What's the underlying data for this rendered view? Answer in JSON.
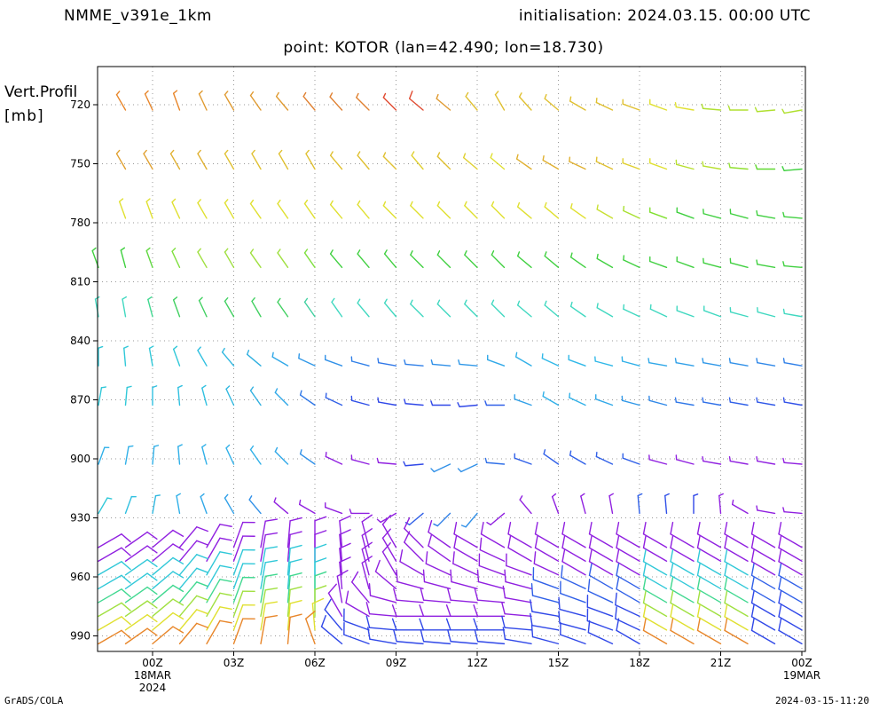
{
  "header": {
    "model": "NMME_v391e_1km",
    "initialisation": "initialisation: 2024.03.15. 00:00 UTC",
    "point": "point: KOTOR (lan=42.490; lon=18.730)"
  },
  "footer": {
    "left": "GrADS/COLA",
    "right": "2024-03-15-11:20"
  },
  "chart_data": {
    "type": "wind-barb-profile",
    "ylabel": [
      "Vert.Profil",
      "[mb]"
    ],
    "ylim": [
      1000,
      700
    ],
    "y_ticks": [
      720,
      750,
      780,
      810,
      840,
      870,
      900,
      930,
      960,
      990
    ],
    "x_range_hours": [
      -2,
      24
    ],
    "x_ticks": [
      {
        "h": 0,
        "lines": [
          "00Z",
          "18MAR",
          "2024"
        ]
      },
      {
        "h": 3,
        "lines": [
          "03Z"
        ]
      },
      {
        "h": 6,
        "lines": [
          "06Z"
        ]
      },
      {
        "h": 9,
        "lines": [
          "09Z"
        ]
      },
      {
        "h": 12,
        "lines": [
          "12Z"
        ]
      },
      {
        "h": 15,
        "lines": [
          "15Z"
        ]
      },
      {
        "h": 18,
        "lines": [
          "18Z"
        ]
      },
      {
        "h": 21,
        "lines": [
          "21Z"
        ]
      },
      {
        "h": 24,
        "lines": [
          "00Z",
          "19MAR"
        ]
      }
    ],
    "grid": true,
    "barb_times_hours": [
      -2,
      -1,
      0,
      1,
      2,
      3,
      4,
      5,
      6,
      7,
      8,
      9,
      10,
      11,
      12,
      13,
      14,
      15,
      16,
      17,
      18,
      19,
      20,
      21,
      22,
      23,
      24
    ],
    "upper_levels": [
      {
        "p": 720,
        "dir": [
          null,
          330,
          335,
          340,
          335,
          330,
          325,
          320,
          320,
          318,
          315,
          315,
          310,
          310,
          320,
          330,
          318,
          310,
          300,
          295,
          290,
          290,
          280,
          275,
          270,
          265,
          260
        ],
        "speed": [
          null,
          8,
          8,
          8,
          8,
          8,
          8,
          8,
          8,
          8,
          8,
          9,
          10,
          9,
          8,
          8,
          8,
          8,
          8,
          8,
          8,
          8,
          8,
          8,
          8,
          8,
          8
        ],
        "color": [
          "#e8862a",
          "#e8862a",
          "#e8862a",
          "#e8862a",
          "#e09a30",
          "#e09a30",
          "#e09a30",
          "#e09a30",
          "#e08030",
          "#e08030",
          "#e08030",
          "#e04a30",
          "#e04a30",
          "#e09a30",
          "#e0c030",
          "#e0c030",
          "#e0c030",
          "#e0c030",
          "#e0c030",
          "#e0c030",
          "#e0c030",
          "#e0e030",
          "#e0e030",
          "#b0e030",
          "#b0e030",
          "#b0e030",
          "#b0e030"
        ]
      },
      {
        "p": 750,
        "dir": [
          null,
          330,
          330,
          330,
          330,
          330,
          330,
          330,
          330,
          320,
          320,
          315,
          320,
          315,
          310,
          310,
          305,
          300,
          295,
          295,
          290,
          290,
          285,
          280,
          275,
          270,
          265
        ],
        "speed": [
          null,
          8,
          8,
          8,
          8,
          8,
          8,
          8,
          8,
          8,
          8,
          8,
          8,
          8,
          8,
          8,
          8,
          8,
          8,
          8,
          8,
          8,
          8,
          8,
          8,
          8,
          8
        ],
        "color": [
          "#e0a030",
          "#e0a030",
          "#e0a030",
          "#e0b030",
          "#e0b030",
          "#e0c030",
          "#e0c030",
          "#e0c030",
          "#e0c030",
          "#e0c030",
          "#e0c030",
          "#e0c030",
          "#e0d030",
          "#e0c030",
          "#e0d030",
          "#e0e030",
          "#e0b030",
          "#e0b030",
          "#e0b030",
          "#e0c030",
          "#e0d030",
          "#e0e030",
          "#b8e030",
          "#b8e030",
          "#90e030",
          "#60d830",
          "#40d040"
        ]
      },
      {
        "p": 775,
        "dir": [
          null,
          340,
          340,
          335,
          330,
          330,
          325,
          325,
          325,
          320,
          320,
          315,
          315,
          315,
          315,
          315,
          310,
          310,
          305,
          300,
          295,
          290,
          290,
          285,
          285,
          280,
          275
        ],
        "speed": [
          null,
          8,
          8,
          8,
          8,
          8,
          8,
          8,
          8,
          8,
          8,
          8,
          8,
          8,
          8,
          8,
          8,
          8,
          8,
          8,
          8,
          8,
          8,
          8,
          8,
          8,
          8
        ],
        "color": [
          "#e0e030",
          "#e0e030",
          "#e0e030",
          "#e0e030",
          "#e0e030",
          "#e0e030",
          "#e0e030",
          "#e0e030",
          "#e0e030",
          "#e0e030",
          "#e0e030",
          "#e0e030",
          "#e0e030",
          "#e0e030",
          "#e0e030",
          "#e0e030",
          "#e0e030",
          "#e0e030",
          "#e0e030",
          "#c8e030",
          "#a8e030",
          "#80e030",
          "#40d040",
          "#40d040",
          "#40d040",
          "#40d040",
          "#40d040"
        ]
      },
      {
        "p": 800,
        "dir": [
          340,
          345,
          340,
          335,
          330,
          330,
          325,
          325,
          325,
          320,
          320,
          320,
          315,
          315,
          315,
          315,
          310,
          310,
          305,
          300,
          295,
          290,
          290,
          285,
          285,
          280,
          275
        ],
        "speed": [
          8,
          8,
          8,
          8,
          8,
          8,
          8,
          8,
          8,
          8,
          8,
          8,
          8,
          8,
          8,
          8,
          8,
          8,
          8,
          8,
          8,
          8,
          8,
          8,
          8,
          8,
          8
        ],
        "color": [
          "#40d040",
          "#40d040",
          "#60d840",
          "#80e040",
          "#a0e040",
          "#a0e040",
          "#a0e040",
          "#a0e040",
          "#80e040",
          "#40d040",
          "#40d040",
          "#40d040",
          "#40d040",
          "#40d040",
          "#40d040",
          "#40d040",
          "#40d040",
          "#40d040",
          "#40d040",
          "#40d040",
          "#40d040",
          "#40d040",
          "#40d040",
          "#40d040",
          "#40d040",
          "#40d040",
          "#40d040"
        ]
      },
      {
        "p": 825,
        "dir": [
          350,
          350,
          345,
          340,
          335,
          330,
          330,
          325,
          325,
          325,
          320,
          320,
          315,
          315,
          315,
          315,
          310,
          310,
          305,
          300,
          295,
          295,
          290,
          290,
          285,
          285,
          280
        ],
        "speed": [
          8,
          8,
          8,
          8,
          8,
          8,
          8,
          8,
          8,
          8,
          8,
          8,
          8,
          8,
          8,
          8,
          8,
          8,
          8,
          8,
          8,
          8,
          8,
          8,
          8,
          8,
          8
        ],
        "color": [
          "#40d8c0",
          "#40d8c0",
          "#40d890",
          "#40d060",
          "#40d060",
          "#40d060",
          "#40d060",
          "#40d060",
          "#40d0a0",
          "#40d8c0",
          "#40d8c0",
          "#40d8c0",
          "#40d8c0",
          "#40d8c0",
          "#40d8c0",
          "#40d8c0",
          "#40d8c0",
          "#40d8c0",
          "#40d8c0",
          "#40d8c0",
          "#40d8c0",
          "#40d8c0",
          "#40d8c0",
          "#40d8c0",
          "#40d8c0",
          "#40d8c0",
          "#40d8c0"
        ]
      },
      {
        "p": 850,
        "dir": [
          0,
          355,
          350,
          340,
          330,
          320,
          310,
          300,
          295,
          290,
          285,
          280,
          275,
          275,
          275,
          290,
          300,
          295,
          290,
          285,
          285,
          280,
          280,
          280,
          280,
          280,
          280
        ],
        "speed": [
          8,
          8,
          8,
          8,
          8,
          8,
          8,
          8,
          8,
          8,
          8,
          8,
          8,
          8,
          8,
          8,
          8,
          8,
          8,
          8,
          8,
          8,
          8,
          8,
          8,
          8,
          8
        ],
        "color": [
          "#30c8d8",
          "#30c8d8",
          "#30c8d8",
          "#30c8d8",
          "#30c0e0",
          "#30b8e0",
          "#30b0e0",
          "#30a8e8",
          "#3098e8",
          "#3090e8",
          "#3080e8",
          "#3078e8",
          "#3080e8",
          "#3090e8",
          "#3098e8",
          "#30a8e8",
          "#30b0e8",
          "#30b8e8",
          "#30b8e8",
          "#30b8e8",
          "#30b0e8",
          "#30a8e8",
          "#30a0e8",
          "#3098e8",
          "#3090e8",
          "#3088e8",
          "#3080e8"
        ]
      },
      {
        "p": 870,
        "dir": [
          10,
          5,
          0,
          355,
          345,
          335,
          325,
          315,
          305,
          295,
          285,
          280,
          275,
          270,
          265,
          270,
          290,
          300,
          295,
          290,
          285,
          285,
          280,
          280,
          280,
          280,
          280
        ],
        "speed": [
          8,
          8,
          8,
          8,
          8,
          8,
          8,
          8,
          8,
          8,
          8,
          8,
          8,
          8,
          8,
          8,
          8,
          8,
          8,
          8,
          8,
          8,
          8,
          8,
          8,
          8,
          8
        ],
        "color": [
          "#30c8d8",
          "#30c8d8",
          "#30c0e0",
          "#30c0e0",
          "#30c0e0",
          "#30b8e0",
          "#30b0e0",
          "#30a8e8",
          "#3078e8",
          "#3060e8",
          "#3050e8",
          "#3048e8",
          "#3048e8",
          "#3048e8",
          "#3048e8",
          "#3060e8",
          "#30a0e8",
          "#30b0e8",
          "#30b0e8",
          "#30a8e8",
          "#3098e8",
          "#3088e8",
          "#3078e8",
          "#3070e8",
          "#3060e8",
          "#3058e8",
          "#3050e8"
        ]
      },
      {
        "p": 900,
        "dir": [
          20,
          10,
          5,
          355,
          345,
          335,
          325,
          315,
          305,
          295,
          285,
          275,
          265,
          245,
          245,
          275,
          290,
          305,
          300,
          295,
          290,
          285,
          285,
          280,
          280,
          280,
          275
        ],
        "speed": [
          8,
          8,
          8,
          8,
          8,
          8,
          8,
          8,
          8,
          8,
          8,
          8,
          8,
          8,
          8,
          8,
          8,
          8,
          8,
          8,
          8,
          8,
          8,
          8,
          8,
          8,
          8
        ],
        "color": [
          "#30b0e8",
          "#30b0e8",
          "#30b0e8",
          "#30b0e8",
          "#30b0e8",
          "#30b0e8",
          "#30b0e8",
          "#30a8e8",
          "#3090e8",
          "#9020e0",
          "#9020e0",
          "#9020e0",
          "#3048e8",
          "#3090e8",
          "#3090e8",
          "#3070e8",
          "#3060e8",
          "#3060e8",
          "#3060e8",
          "#3060e8",
          "#3060e8",
          "#9020e0",
          "#9020e0",
          "#9020e0",
          "#9020e0",
          "#9020e0",
          "#9020e0"
        ]
      },
      {
        "p": 925,
        "dir": [
          30,
          20,
          10,
          350,
          340,
          330,
          320,
          310,
          300,
          290,
          270,
          240,
          230,
          225,
          220,
          230,
          320,
          340,
          345,
          350,
          355,
          355,
          0,
          355,
          300,
          280,
          275
        ],
        "speed": [
          8,
          8,
          8,
          8,
          8,
          8,
          8,
          8,
          8,
          8,
          8,
          8,
          8,
          8,
          8,
          8,
          8,
          8,
          8,
          8,
          8,
          8,
          8,
          8,
          8,
          8,
          8
        ],
        "color": [
          "#30c8d8",
          "#30c0e0",
          "#30b8e0",
          "#30b0e8",
          "#30a8e8",
          "#30a0e8",
          "#3090e8",
          "#9020e0",
          "#9020e0",
          "#9020e0",
          "#9020e0",
          "#9020e0",
          "#3060e8",
          "#3080e8",
          "#3090e8",
          "#9020e0",
          "#9020e0",
          "#9020e0",
          "#9020e0",
          "#9020e0",
          "#3060e8",
          "#3050e8",
          "#3048e8",
          "#9020e0",
          "#9020e0",
          "#9020e0",
          "#9020e0"
        ]
      }
    ],
    "lower_levels": [
      945,
      952,
      959,
      966,
      973,
      980,
      987,
      994
    ],
    "lower_dir": [
      [
        60,
        55,
        50,
        40,
        30,
        20,
        10,
        5,
        0,
        355,
        345,
        330,
        315,
        305,
        300,
        300,
        300,
        300,
        300,
        300,
        300,
        300,
        300,
        300,
        300,
        300,
        300
      ],
      [
        60,
        55,
        50,
        40,
        30,
        20,
        10,
        5,
        0,
        355,
        345,
        330,
        315,
        305,
        300,
        295,
        300,
        300,
        300,
        300,
        300,
        300,
        300,
        300,
        300,
        300,
        300
      ],
      [
        60,
        55,
        50,
        40,
        30,
        20,
        10,
        5,
        0,
        355,
        345,
        330,
        300,
        295,
        295,
        290,
        290,
        295,
        300,
        300,
        300,
        300,
        300,
        300,
        300,
        300,
        300
      ],
      [
        60,
        55,
        50,
        40,
        30,
        20,
        10,
        5,
        0,
        355,
        345,
        310,
        285,
        285,
        285,
        285,
        285,
        290,
        295,
        300,
        300,
        300,
        300,
        300,
        300,
        300,
        300
      ],
      [
        60,
        55,
        50,
        40,
        30,
        20,
        10,
        5,
        0,
        350,
        320,
        285,
        275,
        275,
        275,
        275,
        280,
        285,
        290,
        295,
        300,
        300,
        300,
        300,
        300,
        300,
        300
      ],
      [
        60,
        55,
        50,
        40,
        30,
        20,
        10,
        5,
        0,
        330,
        300,
        275,
        270,
        270,
        270,
        270,
        275,
        280,
        285,
        290,
        295,
        300,
        300,
        300,
        300,
        300,
        300
      ],
      [
        60,
        55,
        50,
        40,
        30,
        20,
        10,
        5,
        355,
        320,
        290,
        275,
        270,
        270,
        270,
        270,
        275,
        280,
        285,
        290,
        295,
        300,
        300,
        300,
        300,
        300,
        300
      ],
      [
        60,
        55,
        50,
        40,
        30,
        20,
        10,
        5,
        340,
        310,
        290,
        280,
        275,
        275,
        275,
        275,
        280,
        285,
        290,
        295,
        300,
        300,
        300,
        300,
        300,
        300,
        300
      ]
    ],
    "lower_speed": 10,
    "lower_colors": [
      "#9020e0",
      "#9020e0",
      "#30c8d8",
      "#30c8d8",
      "#40d890",
      "#a0e040",
      "#e0e030",
      "#e8862a"
    ]
  }
}
